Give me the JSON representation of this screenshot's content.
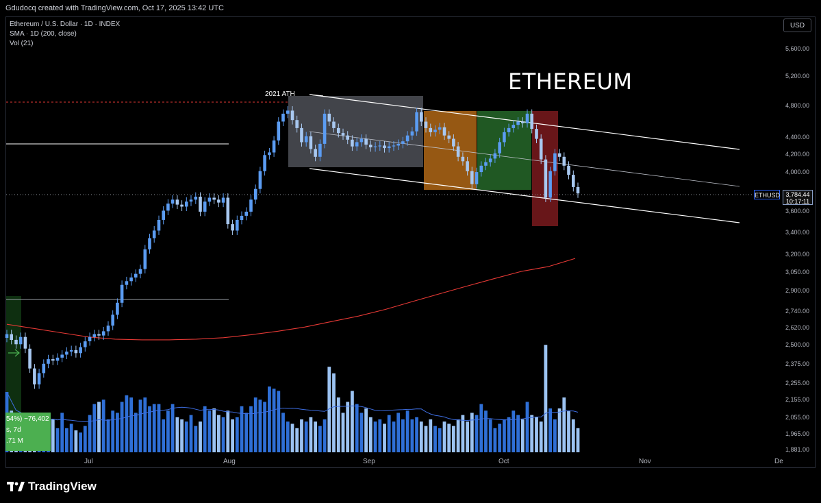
{
  "header": {
    "attribution": "Gdudocq created with TradingView.com, Oct 17, 2025 13:42 UTC"
  },
  "legend": {
    "symbol": "Ethereum / U.S. Dollar · 1D · INDEX",
    "indicator_sma": "SMA · 1D (200, close)",
    "indicator_vol": "Vol (21)"
  },
  "currency_button": "USD",
  "annotations": {
    "title": "ETHEREUM",
    "ath_label": "2021 ATH"
  },
  "last_price": {
    "ticker": "ETHUSD",
    "price": "3,784.44",
    "countdown": "10:17:11"
  },
  "volume_box": {
    "line1": "54%) −76,402",
    "line2": "s, 7d",
    "line3": ".71 M"
  },
  "branding": {
    "logo_text": "TradingView"
  },
  "colors": {
    "up_candle": "#5b9cf2",
    "down_candle": "#a8c8f0",
    "sma_line": "#e53935",
    "channel_lines": "#ffffff",
    "ath_line": "#e53935",
    "box_gray": "#787b86",
    "box_orange": "#d57e1b",
    "box_green": "#2e7d32",
    "box_red": "#8b1e22",
    "vol_highlight": "#4caf50"
  },
  "chart_data": {
    "type": "candlestick",
    "symbol": "ETHUSD",
    "timeframe": "1D",
    "y_axis": {
      "scale": "log",
      "ylim": [
        1881,
        6000
      ],
      "ticks": [
        "5,600.00",
        "5,200.00",
        "4,800.00",
        "4,400.00",
        "4,200.00",
        "4,000.00",
        "3,600.00",
        "3,400.00",
        "3,200.00",
        "3,050.00",
        "2,900.00",
        "2,740.00",
        "2,620.00",
        "2,500.00",
        "2,375.00",
        "2,255.00",
        "2,155.00",
        "2,055.00",
        "1,965.00",
        "1,881.00"
      ]
    },
    "x_axis": {
      "ticks": [
        "Jul",
        "Aug",
        "Sep",
        "Oct",
        "Nov",
        "De"
      ]
    },
    "close_prices": [
      2580,
      2540,
      2510,
      2560,
      2480,
      2350,
      2250,
      2320,
      2380,
      2410,
      2400,
      2420,
      2440,
      2460,
      2470,
      2450,
      2490,
      2530,
      2560,
      2580,
      2570,
      2600,
      2640,
      2720,
      2810,
      2950,
      2980,
      3010,
      3040,
      3080,
      3250,
      3350,
      3420,
      3520,
      3610,
      3680,
      3720,
      3670,
      3650,
      3700,
      3720,
      3750,
      3600,
      3700,
      3740,
      3720,
      3690,
      3740,
      3480,
      3420,
      3520,
      3560,
      3600,
      3720,
      3830,
      4020,
      4200,
      4230,
      4370,
      4600,
      4700,
      4740,
      4620,
      4520,
      4350,
      4420,
      4270,
      4180,
      4330,
      4700,
      4600,
      4520,
      4460,
      4430,
      4380,
      4300,
      4350,
      4390,
      4320,
      4290,
      4300,
      4310,
      4280,
      4300,
      4310,
      4330,
      4360,
      4430,
      4480,
      4720,
      4600,
      4520,
      4470,
      4500,
      4530,
      4430,
      4390,
      4300,
      4180,
      4130,
      4020,
      3880,
      4010,
      4080,
      4120,
      4160,
      4220,
      4350,
      4470,
      4520,
      4560,
      4600,
      4580,
      4700,
      4510,
      4390,
      4150,
      3740,
      4020,
      4220,
      4180,
      4080,
      3980,
      3850,
      3784
    ],
    "sma200": [
      2650,
      2620,
      2590,
      2560,
      2545,
      2540,
      2540,
      2545,
      2555,
      2575,
      2600,
      2630,
      2670,
      2710,
      2760,
      2820,
      2880,
      2940,
      3000,
      3060,
      3100,
      3170
    ],
    "volume_scale_note": "relative",
    "volume": [
      0.55,
      0.38,
      0.22,
      0.3,
      0.28,
      0.28,
      0.22,
      0.32,
      0.24,
      0.24,
      0.3,
      0.22,
      0.36,
      0.22,
      0.26,
      0.2,
      0.18,
      0.24,
      0.34,
      0.44,
      0.46,
      0.48,
      0.3,
      0.38,
      0.36,
      0.46,
      0.52,
      0.5,
      0.36,
      0.48,
      0.5,
      0.42,
      0.44,
      0.44,
      0.3,
      0.38,
      0.44,
      0.32,
      0.3,
      0.28,
      0.34,
      0.24,
      0.28,
      0.42,
      0.38,
      0.4,
      0.34,
      0.32,
      0.38,
      0.3,
      0.32,
      0.42,
      0.36,
      0.42,
      0.5,
      0.48,
      0.46,
      0.6,
      0.58,
      0.56,
      0.36,
      0.28,
      0.26,
      0.22,
      0.3,
      0.28,
      0.32,
      0.28,
      0.24,
      0.3,
      0.78,
      0.72,
      0.5,
      0.36,
      0.46,
      0.56,
      0.44,
      0.36,
      0.4,
      0.32,
      0.28,
      0.3,
      0.26,
      0.34,
      0.28,
      0.36,
      0.3,
      0.38,
      0.3,
      0.32,
      0.28,
      0.24,
      0.3,
      0.24,
      0.22,
      0.28,
      0.26,
      0.24,
      0.3,
      0.34,
      0.28,
      0.36,
      0.34,
      0.44,
      0.38,
      0.3,
      0.22,
      0.26,
      0.3,
      0.32,
      0.38,
      0.34,
      0.3,
      0.46,
      0.34,
      0.32,
      0.28,
      0.98,
      0.4,
      0.3,
      0.4,
      0.5,
      0.38,
      0.3,
      0.22
    ]
  }
}
